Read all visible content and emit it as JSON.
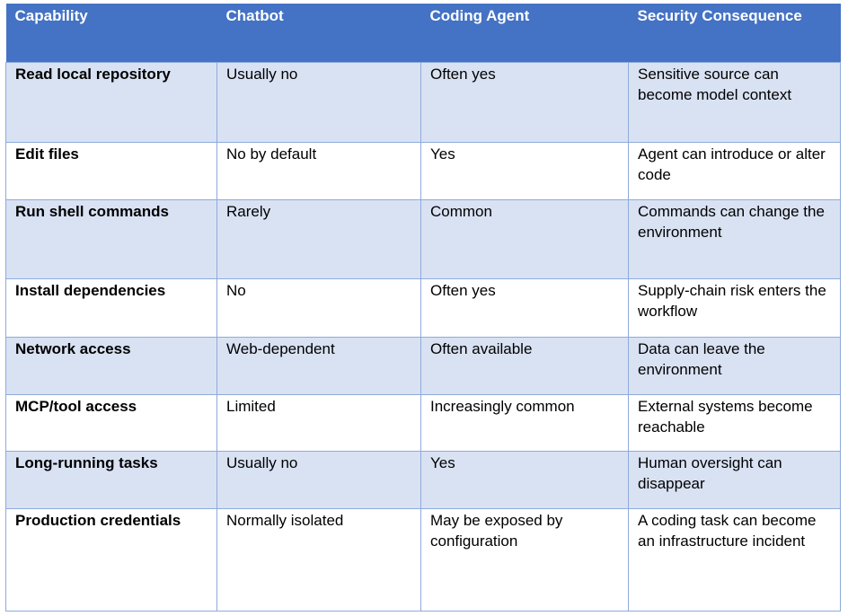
{
  "table": {
    "headers": [
      "Capability",
      "Chatbot",
      "Coding Agent",
      "Security Consequence"
    ],
    "rows": [
      [
        "Read local repository",
        "Usually no",
        "Often yes",
        "Sensitive source can become model context"
      ],
      [
        "Edit files",
        "No by default",
        "Yes",
        "Agent can introduce or alter code"
      ],
      [
        "Run shell commands",
        "Rarely",
        "Common",
        "Commands can change the environment"
      ],
      [
        "Install dependencies",
        "No",
        "Often yes",
        "Supply-chain risk enters the workflow"
      ],
      [
        "Network access",
        "Web-dependent",
        "Often available",
        "Data can leave the environment"
      ],
      [
        "MCP/tool access",
        "Limited",
        "Increasingly common",
        "External systems become reachable"
      ],
      [
        "Long-running tasks",
        "Usually no",
        "Yes",
        "Human oversight can disappear"
      ],
      [
        "Production credentials",
        "Normally isolated",
        "May be exposed by configuration",
        "A coding task can become an infrastructure incident"
      ]
    ]
  },
  "colors": {
    "header_bg": "#4472c4",
    "header_text": "#ffffff",
    "band_bg": "#d9e2f3",
    "plain_bg": "#ffffff",
    "border": "#8eaadb"
  }
}
